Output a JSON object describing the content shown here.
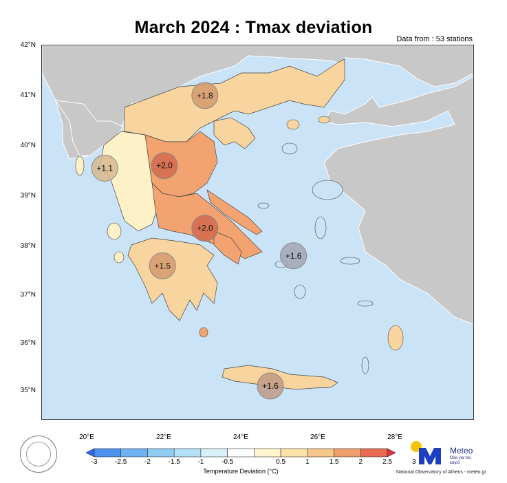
{
  "title": "March 2024 : Tmax deviation",
  "subtitle": "Data from : 53 stations",
  "axes": {
    "lat_labels": [
      "42°N",
      "41°N",
      "40°N",
      "39°N",
      "38°N",
      "37°N",
      "36°N",
      "35°N"
    ],
    "lon_labels": [
      "20°E",
      "22°E",
      "24°E",
      "26°E",
      "28°E"
    ]
  },
  "stations": [
    {
      "label": "+1.8",
      "lon": 23.3,
      "lat": 41.0,
      "color": "#d59a6e"
    },
    {
      "label": "+1.1",
      "lon": 20.7,
      "lat": 39.55,
      "color": "#d8b88e"
    },
    {
      "label": "+2.0",
      "lon": 22.25,
      "lat": 39.6,
      "color": "#d26a4e"
    },
    {
      "label": "+2.0",
      "lon": 23.3,
      "lat": 38.35,
      "color": "#d26a4e"
    },
    {
      "label": "+1.6",
      "lon": 25.6,
      "lat": 37.8,
      "color": "#a5a6b3"
    },
    {
      "label": "+1.5",
      "lon": 22.2,
      "lat": 37.6,
      "color": "#d59a6e"
    },
    {
      "label": "+1.6",
      "lon": 25.0,
      "lat": 35.2,
      "color": "#c09a84"
    }
  ],
  "legend": {
    "title": "Temperature Deviation (°C)",
    "ticks": [
      "-3",
      "-2.5",
      "-2",
      "-1.5",
      "-1",
      "-0.5",
      "0.5",
      "1",
      "1.5",
      "2",
      "2.5",
      "3"
    ],
    "colors": [
      "#2e67f0",
      "#4d90f0",
      "#6fb2f2",
      "#91ccf4",
      "#b4e1f6",
      "#d9f0fa",
      "#ffffff",
      "#fff6cf",
      "#fbe2a7",
      "#f6c78a",
      "#ef9f6a",
      "#e86a52",
      "#e2333a"
    ]
  },
  "logo": {
    "name": "Meteo",
    "tagline": "Όλα για τον καιρό",
    "credit": "National Observatory of Athens - meteo.gr"
  }
}
